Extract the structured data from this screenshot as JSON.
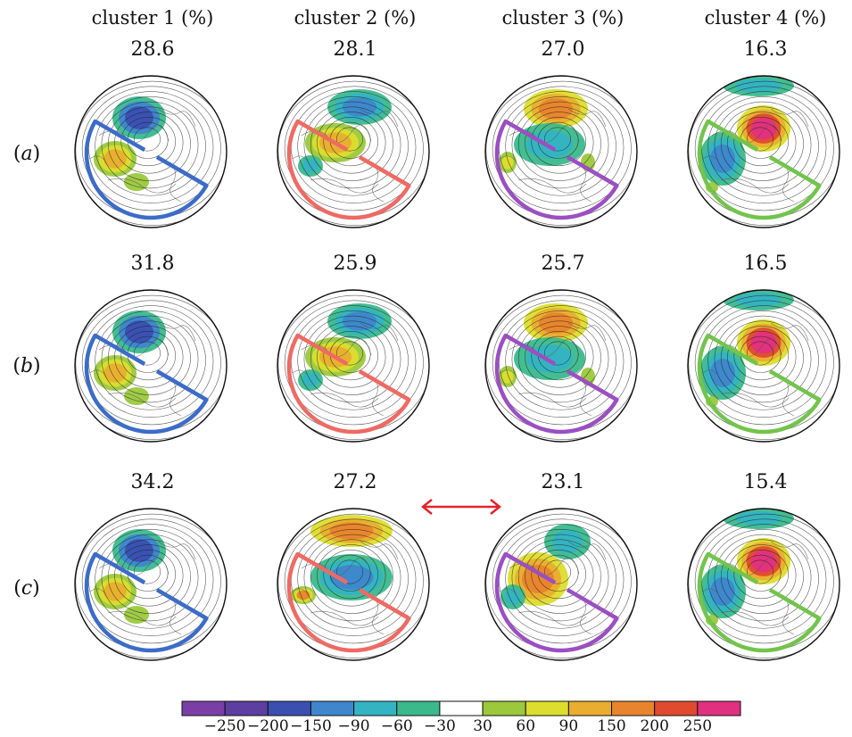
{
  "columns": [
    {
      "title": "cluster 1 (%)",
      "color": "#3c6cc8"
    },
    {
      "title": "cluster 2 (%)",
      "color": "#ee6a63"
    },
    {
      "title": "cluster 3 (%)",
      "color": "#9b4fc2"
    },
    {
      "title": "cluster 4 (%)",
      "color": "#72c44c"
    }
  ],
  "rows": [
    {
      "label": "a",
      "values": [
        "28.6",
        "28.1",
        "27.0",
        "16.3"
      ]
    },
    {
      "label": "b",
      "values": [
        "31.8",
        "25.9",
        "25.7",
        "16.5"
      ]
    },
    {
      "label": "c",
      "values": [
        "34.2",
        "27.2",
        "23.1",
        "15.4"
      ]
    }
  ],
  "colorbar": {
    "labels": [
      "−250",
      "−200",
      "−150",
      "−90",
      "−60",
      "−30",
      "30",
      "60",
      "90",
      "150",
      "200",
      "250"
    ],
    "colors": [
      "#7b3ea6",
      "#5c3fa0",
      "#3a4fb0",
      "#3f86cc",
      "#34b3c2",
      "#3ab98d",
      "#ffffff",
      "#9bc93b",
      "#dddd2e",
      "#e9ad2f",
      "#e8842d",
      "#e04a2f",
      "#e0307f"
    ]
  },
  "arrow_color": "#e0242a"
}
